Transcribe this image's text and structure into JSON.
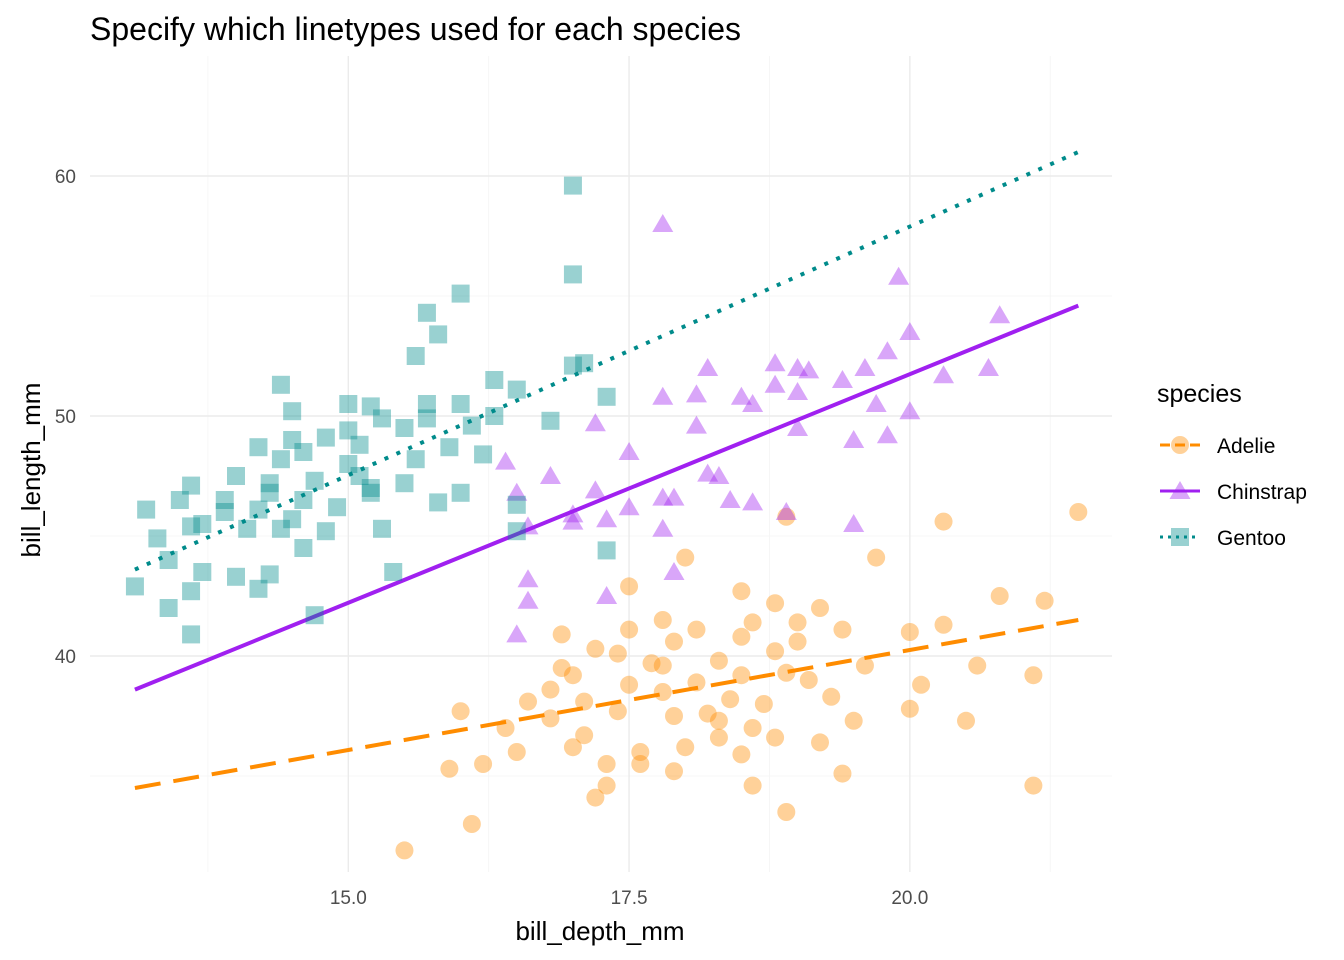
{
  "chart_data": {
    "type": "scatter",
    "title": "Specify which linetypes used for each species",
    "xlabel": "bill_depth_mm",
    "ylabel": "bill_length_mm",
    "xlim": [
      12.7,
      21.8
    ],
    "ylim": [
      31.0,
      65.0
    ],
    "x_ticks": [
      15.0,
      17.5,
      20.0
    ],
    "x_tick_labels": [
      "15.0",
      "17.5",
      "20.0"
    ],
    "y_ticks": [
      40,
      50,
      60
    ],
    "y_tick_labels": [
      "40",
      "50",
      "60"
    ],
    "grid": true,
    "legend": {
      "title": "species",
      "position": "right"
    },
    "series": [
      {
        "name": "Adelie",
        "color": "#FF8C00",
        "shape": "circle",
        "linetype": "dashed",
        "trend": {
          "x": [
            13.1,
            21.5
          ],
          "y": [
            34.5,
            41.5
          ]
        },
        "points": [
          [
            15.5,
            31.9
          ],
          [
            16.1,
            33.0
          ],
          [
            17.2,
            34.1
          ],
          [
            18.9,
            33.5
          ],
          [
            21.1,
            34.6
          ],
          [
            17.3,
            34.6
          ],
          [
            18.6,
            34.6
          ],
          [
            19.4,
            35.1
          ],
          [
            17.9,
            35.2
          ],
          [
            15.9,
            35.3
          ],
          [
            17.6,
            35.5
          ],
          [
            16.2,
            35.5
          ],
          [
            17.3,
            35.5
          ],
          [
            18.5,
            35.9
          ],
          [
            16.5,
            36.0
          ],
          [
            17.0,
            36.2
          ],
          [
            18.0,
            36.2
          ],
          [
            19.2,
            36.4
          ],
          [
            18.3,
            36.6
          ],
          [
            18.8,
            36.6
          ],
          [
            17.1,
            36.7
          ],
          [
            16.4,
            37.0
          ],
          [
            18.6,
            37.0
          ],
          [
            19.5,
            37.3
          ],
          [
            17.9,
            37.5
          ],
          [
            18.2,
            37.6
          ],
          [
            16.0,
            37.7
          ],
          [
            17.4,
            37.7
          ],
          [
            20.5,
            37.3
          ],
          [
            20.0,
            37.8
          ],
          [
            18.7,
            38.0
          ],
          [
            17.1,
            38.1
          ],
          [
            18.4,
            38.2
          ],
          [
            19.3,
            38.3
          ],
          [
            17.8,
            38.5
          ],
          [
            16.8,
            38.6
          ],
          [
            20.1,
            38.8
          ],
          [
            17.5,
            38.8
          ],
          [
            18.1,
            38.9
          ],
          [
            19.1,
            39.0
          ],
          [
            17.0,
            39.2
          ],
          [
            18.5,
            39.2
          ],
          [
            18.9,
            39.3
          ],
          [
            21.1,
            39.2
          ],
          [
            20.6,
            39.6
          ],
          [
            16.9,
            39.5
          ],
          [
            19.6,
            39.6
          ],
          [
            17.7,
            39.7
          ],
          [
            18.3,
            39.8
          ],
          [
            17.4,
            40.1
          ],
          [
            18.8,
            40.2
          ],
          [
            17.2,
            40.3
          ],
          [
            19.0,
            40.6
          ],
          [
            20.0,
            41.0
          ],
          [
            17.9,
            40.6
          ],
          [
            18.5,
            40.8
          ],
          [
            16.9,
            40.9
          ],
          [
            17.5,
            41.1
          ],
          [
            18.1,
            41.1
          ],
          [
            19.4,
            41.1
          ],
          [
            18.6,
            41.4
          ],
          [
            17.8,
            41.5
          ],
          [
            19.2,
            42.0
          ],
          [
            18.8,
            42.2
          ],
          [
            17.5,
            42.9
          ],
          [
            20.3,
            41.3
          ],
          [
            21.2,
            42.3
          ],
          [
            20.8,
            42.5
          ],
          [
            18.5,
            42.7
          ],
          [
            18.0,
            44.1
          ],
          [
            19.7,
            44.1
          ],
          [
            20.3,
            45.6
          ],
          [
            18.9,
            45.8
          ],
          [
            21.5,
            46.0
          ],
          [
            16.6,
            38.1
          ],
          [
            17.6,
            36.0
          ],
          [
            19.0,
            41.4
          ],
          [
            18.3,
            37.3
          ],
          [
            16.8,
            37.4
          ],
          [
            17.8,
            39.6
          ]
        ]
      },
      {
        "name": "Chinstrap",
        "color": "#A020F0",
        "shape": "triangle",
        "linetype": "solid",
        "trend": {
          "x": [
            13.1,
            21.5
          ],
          "y": [
            38.6,
            54.6
          ]
        },
        "points": [
          [
            17.8,
            58.0
          ],
          [
            19.9,
            55.8
          ],
          [
            20.0,
            53.5
          ],
          [
            20.8,
            54.2
          ],
          [
            20.7,
            52.0
          ],
          [
            19.6,
            52.0
          ],
          [
            18.8,
            52.2
          ],
          [
            19.0,
            52.0
          ],
          [
            19.8,
            52.7
          ],
          [
            20.3,
            51.7
          ],
          [
            18.2,
            52.0
          ],
          [
            18.6,
            50.5
          ],
          [
            18.8,
            51.3
          ],
          [
            19.4,
            51.5
          ],
          [
            19.0,
            51.0
          ],
          [
            18.1,
            50.9
          ],
          [
            17.8,
            50.8
          ],
          [
            19.7,
            50.5
          ],
          [
            20.0,
            50.2
          ],
          [
            19.0,
            49.5
          ],
          [
            18.1,
            49.6
          ],
          [
            17.2,
            49.7
          ],
          [
            19.5,
            49.0
          ],
          [
            19.8,
            49.2
          ],
          [
            17.5,
            48.5
          ],
          [
            18.2,
            47.6
          ],
          [
            16.4,
            48.1
          ],
          [
            16.8,
            47.5
          ],
          [
            17.2,
            46.9
          ],
          [
            16.5,
            46.8
          ],
          [
            17.8,
            46.6
          ],
          [
            17.9,
            46.6
          ],
          [
            18.6,
            46.4
          ],
          [
            18.9,
            46.0
          ],
          [
            16.6,
            45.4
          ],
          [
            17.0,
            45.6
          ],
          [
            17.3,
            45.7
          ],
          [
            17.8,
            45.3
          ],
          [
            19.5,
            45.5
          ],
          [
            16.6,
            43.2
          ],
          [
            17.9,
            43.5
          ],
          [
            17.3,
            42.5
          ],
          [
            16.6,
            42.3
          ],
          [
            16.5,
            40.9
          ],
          [
            18.3,
            47.5
          ],
          [
            19.1,
            51.9
          ],
          [
            18.5,
            50.8
          ],
          [
            17.5,
            46.2
          ],
          [
            17.0,
            45.9
          ],
          [
            18.4,
            46.5
          ]
        ]
      },
      {
        "name": "Gentoo",
        "color": "#008B8B",
        "shape": "square",
        "linetype": "dotted",
        "trend": {
          "x": [
            13.1,
            21.5
          ],
          "y": [
            43.6,
            61.0
          ]
        },
        "points": [
          [
            17.0,
            59.6
          ],
          [
            17.0,
            55.9
          ],
          [
            16.0,
            55.1
          ],
          [
            15.7,
            54.3
          ],
          [
            15.8,
            53.4
          ],
          [
            15.6,
            52.5
          ],
          [
            17.0,
            52.1
          ],
          [
            17.1,
            52.2
          ],
          [
            16.3,
            51.5
          ],
          [
            14.4,
            51.3
          ],
          [
            16.5,
            51.1
          ],
          [
            17.3,
            50.8
          ],
          [
            14.5,
            50.2
          ],
          [
            15.0,
            50.5
          ],
          [
            15.2,
            50.4
          ],
          [
            15.7,
            50.5
          ],
          [
            16.0,
            50.5
          ],
          [
            16.3,
            50.0
          ],
          [
            15.3,
            49.9
          ],
          [
            16.8,
            49.8
          ],
          [
            14.8,
            49.1
          ],
          [
            15.0,
            49.4
          ],
          [
            15.5,
            49.5
          ],
          [
            16.1,
            49.6
          ],
          [
            14.2,
            48.7
          ],
          [
            14.5,
            49.0
          ],
          [
            14.6,
            48.5
          ],
          [
            15.1,
            48.8
          ],
          [
            15.9,
            48.7
          ],
          [
            16.2,
            48.4
          ],
          [
            14.4,
            48.2
          ],
          [
            15.0,
            48.0
          ],
          [
            15.6,
            48.2
          ],
          [
            16.5,
            45.2
          ],
          [
            14.0,
            47.5
          ],
          [
            14.3,
            47.2
          ],
          [
            14.7,
            47.3
          ],
          [
            15.2,
            47.0
          ],
          [
            15.5,
            47.2
          ],
          [
            16.0,
            46.8
          ],
          [
            13.6,
            47.1
          ],
          [
            13.9,
            46.5
          ],
          [
            14.3,
            46.8
          ],
          [
            14.6,
            46.5
          ],
          [
            14.9,
            46.2
          ],
          [
            15.2,
            46.8
          ],
          [
            15.8,
            46.4
          ],
          [
            13.2,
            46.1
          ],
          [
            13.5,
            46.5
          ],
          [
            13.9,
            46.0
          ],
          [
            14.5,
            45.7
          ],
          [
            14.8,
            45.2
          ],
          [
            15.3,
            45.3
          ],
          [
            13.3,
            44.9
          ],
          [
            13.6,
            45.4
          ],
          [
            13.7,
            45.5
          ],
          [
            14.1,
            45.3
          ],
          [
            14.4,
            45.3
          ],
          [
            14.6,
            44.5
          ],
          [
            13.4,
            44.0
          ],
          [
            13.7,
            43.5
          ],
          [
            14.0,
            43.3
          ],
          [
            14.3,
            43.4
          ],
          [
            14.7,
            41.7
          ],
          [
            13.1,
            42.9
          ],
          [
            13.4,
            42.0
          ],
          [
            13.6,
            42.7
          ],
          [
            13.6,
            40.9
          ],
          [
            14.2,
            42.8
          ],
          [
            15.4,
            43.5
          ],
          [
            17.3,
            44.4
          ],
          [
            16.5,
            46.3
          ],
          [
            15.7,
            49.9
          ],
          [
            15.1,
            47.5
          ],
          [
            14.2,
            46.1
          ]
        ]
      }
    ]
  }
}
